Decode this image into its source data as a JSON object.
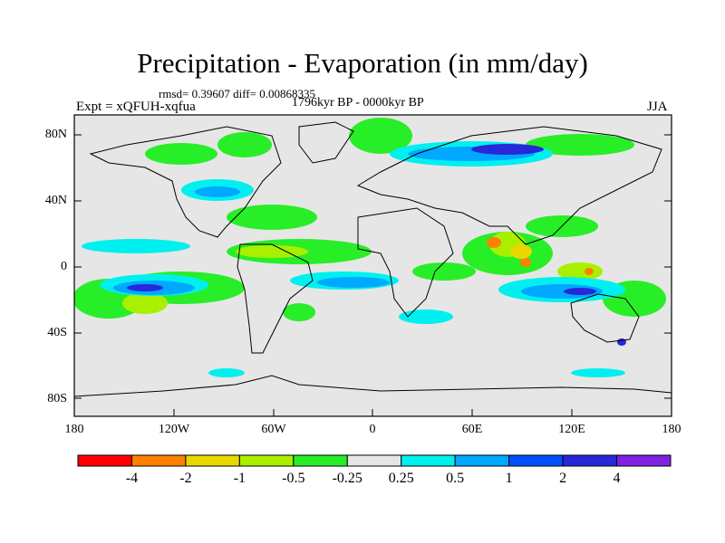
{
  "title": "Precipitation - Evaporation (in mm/day)",
  "stats": "rmsd= 0.39607 diff= 0.00868335",
  "period": "1796kyr BP - 0000kyr BP",
  "experiment": "Expt = xQFUH-xqfua",
  "season": "JJA",
  "lat_labels": [
    "80N",
    "40N",
    "0",
    "40S",
    "80S"
  ],
  "lon_labels": [
    "180",
    "120W",
    "60W",
    "0",
    "60E",
    "120E",
    "180"
  ],
  "colorbar": {
    "labels": [
      "-4",
      "-2",
      "-1",
      "-0.5",
      "-0.25",
      "0.25",
      "0.5",
      "1",
      "2",
      "4"
    ],
    "colors": [
      "#ff0000",
      "#ff8000",
      "#e8d800",
      "#a8f000",
      "#28ee28",
      "#e6e6e6",
      "#00f0f0",
      "#00a8ff",
      "#0050ff",
      "#2828d8",
      "#8020e0"
    ]
  }
}
